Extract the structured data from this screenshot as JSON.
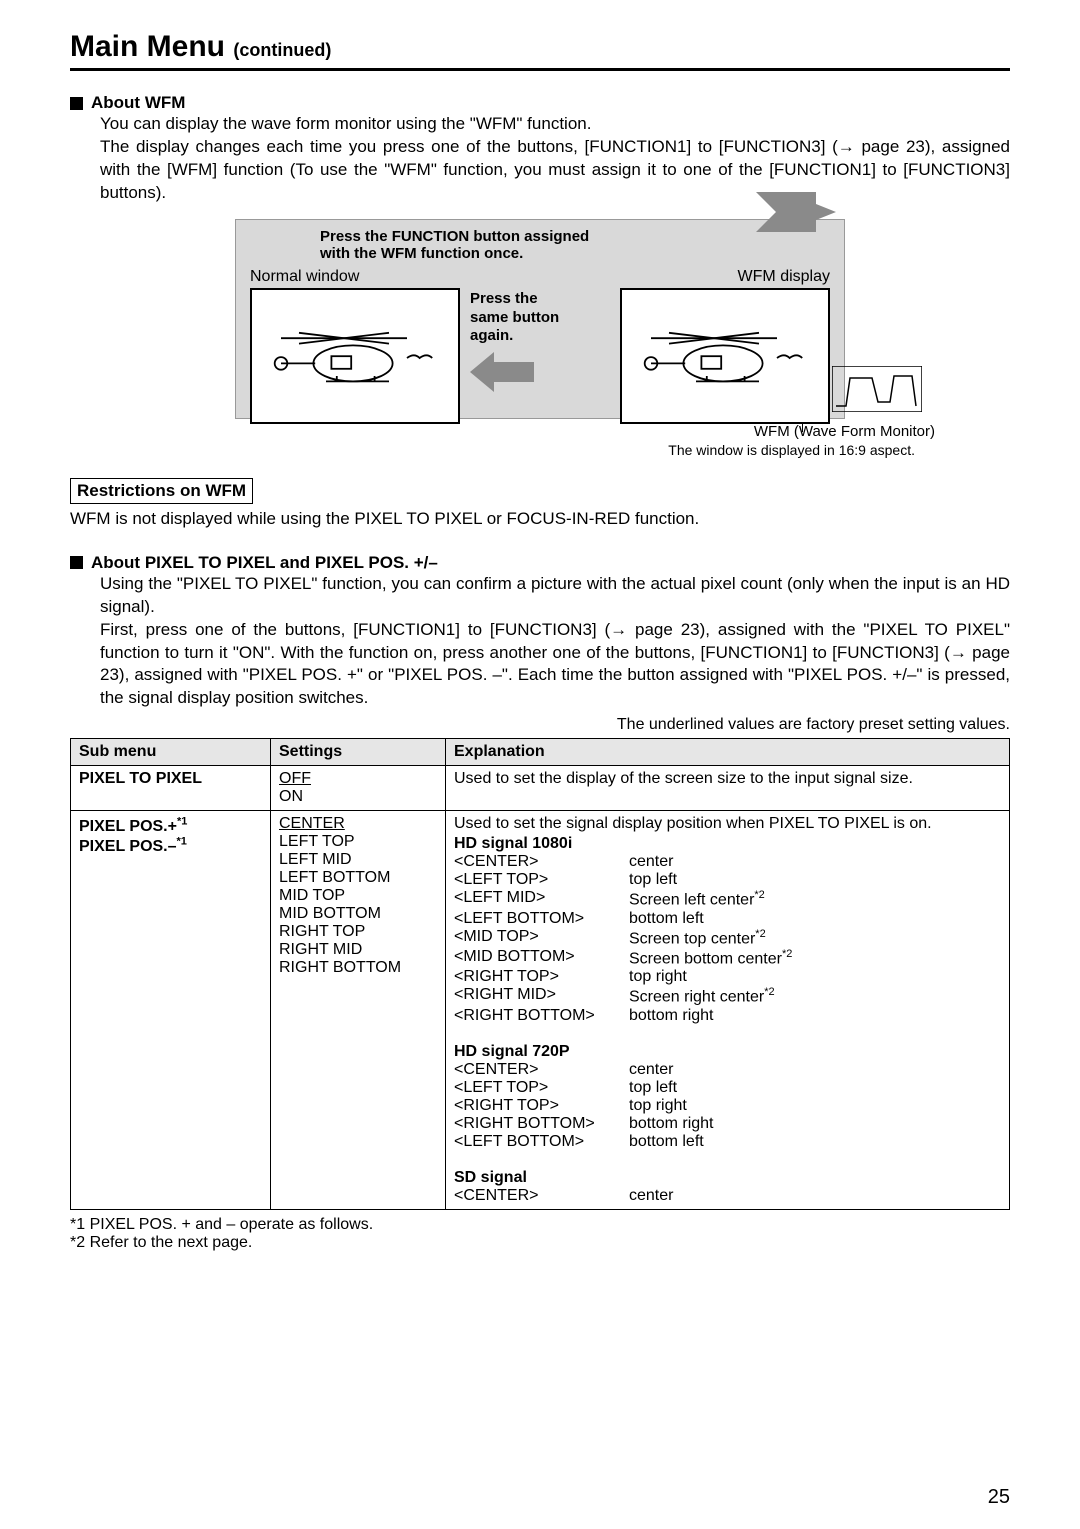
{
  "page": {
    "title": "Main Menu",
    "subtitle": "(continued)",
    "number": "25"
  },
  "wfm": {
    "heading": "About WFM",
    "p1": "You can display the wave form monitor using the \"WFM\" function.",
    "p2": "The display changes each time you press one of the buttons, [FUNCTION1] to [FUNCTION3] (→ page 23), assigned with the [WFM] function (To use the \"WFM\" function, you must assign it to one of the [FUNCTION1] to [FUNCTION3] buttons).",
    "diagram": {
      "press_once_l1": "Press the FUNCTION button assigned",
      "press_once_l2": "with the WFM function once.",
      "normal_label": "Normal window",
      "wfm_label": "WFM display",
      "press_again_l1": "Press the",
      "press_again_l2": "same button",
      "press_again_l3": "again.",
      "caption": "WFM (Wave Form Monitor)",
      "aspect_note": "The window is displayed in 16:9 aspect."
    },
    "restrictions_heading": "Restrictions on WFM",
    "restrictions_text": "WFM is not displayed while using the PIXEL TO PIXEL or FOCUS-IN-RED function."
  },
  "pixel": {
    "heading": "About PIXEL TO PIXEL and PIXEL POS. +/–",
    "p1": "Using the \"PIXEL TO PIXEL\" function, you can confirm a picture with the actual pixel count (only when the input is an HD signal).",
    "p2": "First, press one of the buttons, [FUNCTION1] to [FUNCTION3] (→ page 23), assigned with the \"PIXEL TO PIXEL\" function to turn it \"ON\". With the function on, press another one of the buttons, [FUNCTION1] to [FUNCTION3] (→ page 23), assigned with \"PIXEL POS. +\" or \"PIXEL POS. –\". Each time the button assigned with \"PIXEL POS. +/–\" is pressed, the signal display position switches.",
    "factory_note": "The underlined values are factory preset setting values."
  },
  "table": {
    "headers": {
      "c1": "Sub menu",
      "c2": "Settings",
      "c3": "Explanation"
    },
    "row1": {
      "submenu": "PIXEL TO PIXEL",
      "setting_default": "OFF",
      "setting_other": "ON",
      "explanation": "Used to set the display of the screen size to the input signal size."
    },
    "row2": {
      "submenu_l1": "PIXEL POS.+",
      "submenu_l2": "PIXEL POS.–",
      "sup": "*1",
      "settings": [
        "CENTER",
        "LEFT TOP",
        "LEFT MID",
        "LEFT BOTTOM",
        "MID TOP",
        "MID BOTTOM",
        "RIGHT TOP",
        "RIGHT MID",
        "RIGHT BOTTOM"
      ],
      "exp_intro": "Used to set the signal display position when PIXEL TO PIXEL is on.",
      "hd1080_head": "HD signal 1080i",
      "hd1080": [
        {
          "k": "<CENTER>",
          "v": "center"
        },
        {
          "k": "<LEFT TOP>",
          "v": "top left"
        },
        {
          "k": "<LEFT MID>",
          "v": "Screen left center",
          "sup": "*2"
        },
        {
          "k": "<LEFT BOTTOM>",
          "v": "bottom left"
        },
        {
          "k": "<MID TOP>",
          "v": "Screen top center",
          "sup": "*2"
        },
        {
          "k": "<MID BOTTOM>",
          "v": "Screen bottom center",
          "sup": "*2"
        },
        {
          "k": "<RIGHT TOP>",
          "v": "top right"
        },
        {
          "k": "<RIGHT MID>",
          "v": "Screen right center",
          "sup": "*2"
        },
        {
          "k": "<RIGHT BOTTOM>",
          "v": "bottom right"
        }
      ],
      "hd720_head": "HD signal 720P",
      "hd720": [
        {
          "k": "<CENTER>",
          "v": "center"
        },
        {
          "k": "<LEFT TOP>",
          "v": "top left"
        },
        {
          "k": "<RIGHT TOP>",
          "v": "top right"
        },
        {
          "k": "<RIGHT BOTTOM>",
          "v": "bottom right"
        },
        {
          "k": "<LEFT BOTTOM>",
          "v": "bottom left"
        }
      ],
      "sd_head": "SD signal",
      "sd": [
        {
          "k": "<CENTER>",
          "v": "center"
        }
      ]
    }
  },
  "footnotes": {
    "f1": "*1  PIXEL POS. + and – operate as follows.",
    "f2": "*2  Refer to the next page."
  }
}
